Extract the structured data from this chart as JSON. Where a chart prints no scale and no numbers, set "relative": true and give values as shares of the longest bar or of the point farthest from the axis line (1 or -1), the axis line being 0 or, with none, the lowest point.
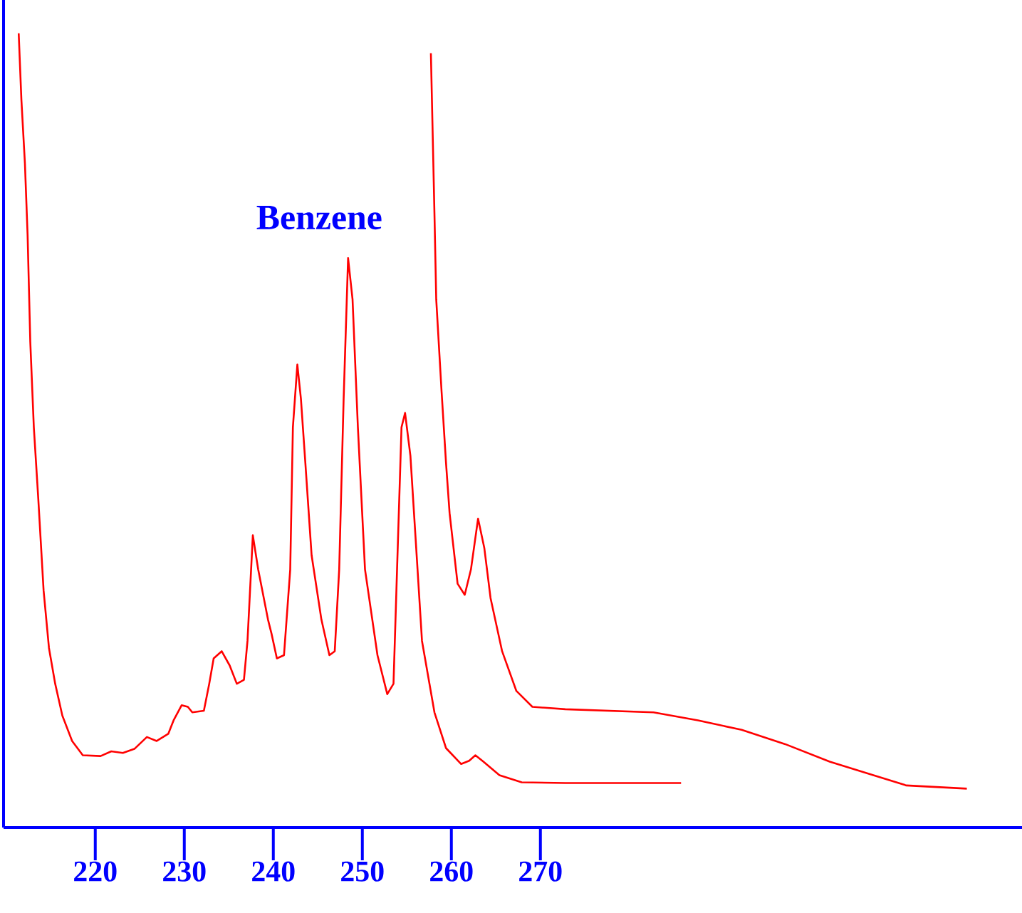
{
  "chart_data": {
    "type": "line",
    "relative": true,
    "xlim": [
      209.7,
      324.1
    ],
    "xticks": [
      220,
      230,
      240,
      250,
      260,
      270
    ],
    "annotations": [
      "Benzene"
    ],
    "series": [
      {
        "color": "#ff0000",
        "x": [
          211.4,
          211.7,
          212.1,
          212.4,
          212.7,
          213.1,
          213.6,
          214.2,
          214.8,
          215.5,
          216.3,
          217.4,
          218.6,
          220.6,
          221.8,
          223.1,
          224.4,
          225.8,
          226.9,
          228.2,
          228.8,
          229.7,
          230.4,
          230.9,
          232.2,
          232.8,
          233.3,
          234.2,
          235.1,
          235.9,
          236.7,
          237.1,
          237.7,
          238.3,
          239.4,
          239.8,
          240.4,
          241.2,
          241.9,
          242.2,
          242.7,
          243.1,
          243.6,
          244.3,
          245.4,
          246.3,
          246.9,
          247.4,
          247.9,
          248.4,
          248.9,
          249.5,
          250.3,
          251.7,
          252.8,
          253.5,
          253.9,
          254.4,
          254.8,
          255.4,
          256.1,
          256.7,
          258.1,
          259.4,
          261.1,
          262.0,
          262.7,
          263.6,
          265.4,
          267.9,
          272.8,
          285.8
        ],
        "values": [
          1.0,
          0.917,
          0.836,
          0.746,
          0.612,
          0.504,
          0.414,
          0.298,
          0.226,
          0.181,
          0.141,
          0.109,
          0.091,
          0.09,
          0.096,
          0.094,
          0.099,
          0.114,
          0.109,
          0.118,
          0.135,
          0.154,
          0.152,
          0.145,
          0.147,
          0.181,
          0.213,
          0.222,
          0.204,
          0.181,
          0.186,
          0.235,
          0.368,
          0.325,
          0.262,
          0.244,
          0.213,
          0.217,
          0.325,
          0.504,
          0.583,
          0.54,
          0.459,
          0.343,
          0.262,
          0.217,
          0.222,
          0.325,
          0.54,
          0.717,
          0.665,
          0.504,
          0.325,
          0.217,
          0.168,
          0.181,
          0.325,
          0.504,
          0.522,
          0.468,
          0.343,
          0.235,
          0.145,
          0.1,
          0.08,
          0.084,
          0.091,
          0.083,
          0.066,
          0.057,
          0.056,
          0.056
        ]
      },
      {
        "color": "#ff0000",
        "x": [
          257.7,
          258.1,
          258.3,
          258.9,
          259.4,
          259.8,
          260.7,
          261.5,
          262.2,
          263.0,
          263.7,
          264.4,
          265.7,
          267.3,
          269.1,
          272.8,
          282.7,
          287.7,
          292.6,
          297.5,
          302.5,
          307.4,
          311.1,
          317.9
        ],
        "values": [
          0.975,
          0.773,
          0.665,
          0.549,
          0.459,
          0.396,
          0.307,
          0.293,
          0.325,
          0.389,
          0.352,
          0.289,
          0.222,
          0.172,
          0.152,
          0.149,
          0.145,
          0.135,
          0.123,
          0.105,
          0.083,
          0.066,
          0.053,
          0.049
        ]
      }
    ]
  }
}
